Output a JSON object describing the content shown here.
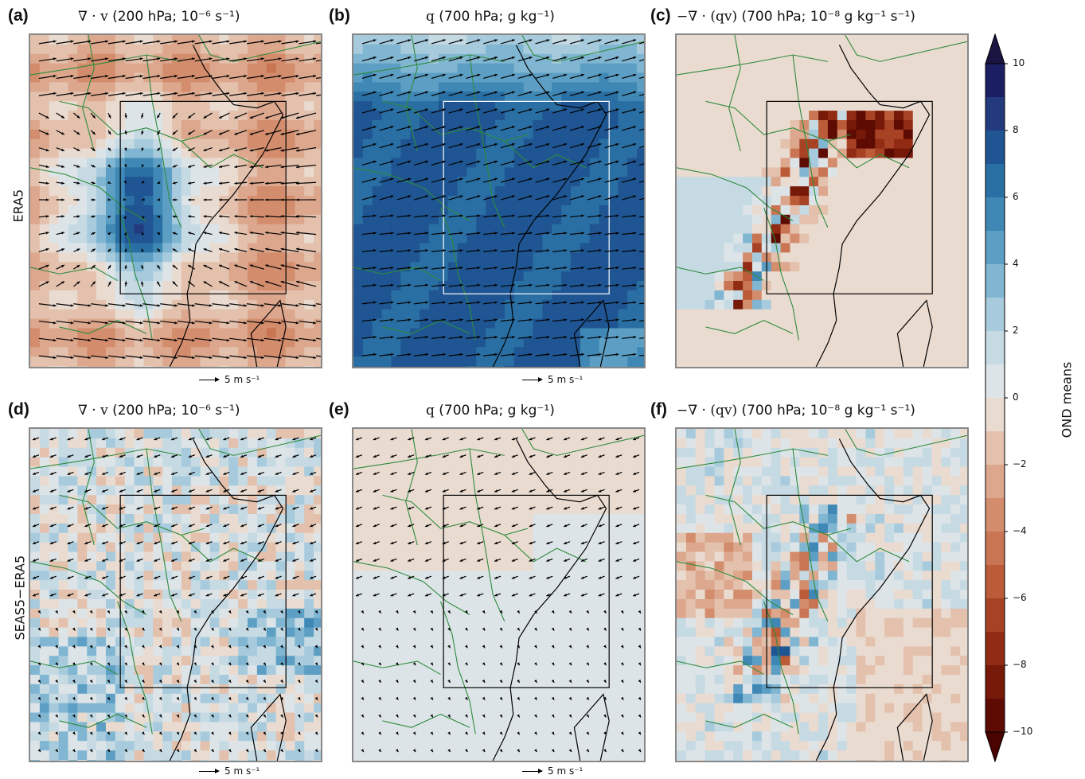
{
  "panels": [
    {
      "id": "a",
      "label": "(a)",
      "title_sym": "∇ · v",
      "title_unit": "(200 hPa; 10⁻⁶ s⁻¹)",
      "theme": "div_era5",
      "arrows": "strong"
    },
    {
      "id": "b",
      "label": "(b)",
      "title_sym": "q",
      "title_unit": "(700 hPa; g kg⁻¹)",
      "theme": "q_era5",
      "arrows": "medium",
      "box": "white"
    },
    {
      "id": "c",
      "label": "(c)",
      "title_sym": "−∇ · (qv)",
      "title_unit": "(700 hPa; 10⁻⁸ g kg⁻¹ s⁻¹)",
      "theme": "conv_era5",
      "arrows": "none"
    },
    {
      "id": "d",
      "label": "(d)",
      "title_sym": "∇ · v",
      "title_unit": "(200 hPa; 10⁻⁶ s⁻¹)",
      "theme": "div_diff",
      "arrows": "weak"
    },
    {
      "id": "e",
      "label": "(e)",
      "title_sym": "q",
      "title_unit": "(700 hPa; g kg⁻¹)",
      "theme": "q_diff",
      "arrows": "weak"
    },
    {
      "id": "f",
      "label": "(f)",
      "title_sym": "−∇ · (qv)",
      "title_unit": "(700 hPa; 10⁻⁸ g kg⁻¹ s⁻¹)",
      "theme": "conv_diff",
      "arrows": "none"
    }
  ],
  "row_labels": [
    "ERA5",
    "SEAS5−ERA5"
  ],
  "reference_vector": "5 m s⁻¹",
  "colorbar": {
    "label": "OND means",
    "ticks": [
      "10",
      "8",
      "6",
      "4",
      "2",
      "0",
      "−2",
      "−4",
      "−6",
      "−8",
      "−10"
    ],
    "range": [
      -10,
      10
    ],
    "colors_top_to_bottom": [
      "#1c1e63",
      "#243a7f",
      "#1f5592",
      "#2a6fa3",
      "#3f88b5",
      "#5d9fc4",
      "#80b6d1",
      "#a7cbdd",
      "#c6dae4",
      "#dde4e8",
      "#eadbd0",
      "#e3c1ad",
      "#dca78d",
      "#d38d6d",
      "#c97452",
      "#bb5b38",
      "#a84224",
      "#912b14",
      "#771908",
      "#5e0b03"
    ]
  }
}
